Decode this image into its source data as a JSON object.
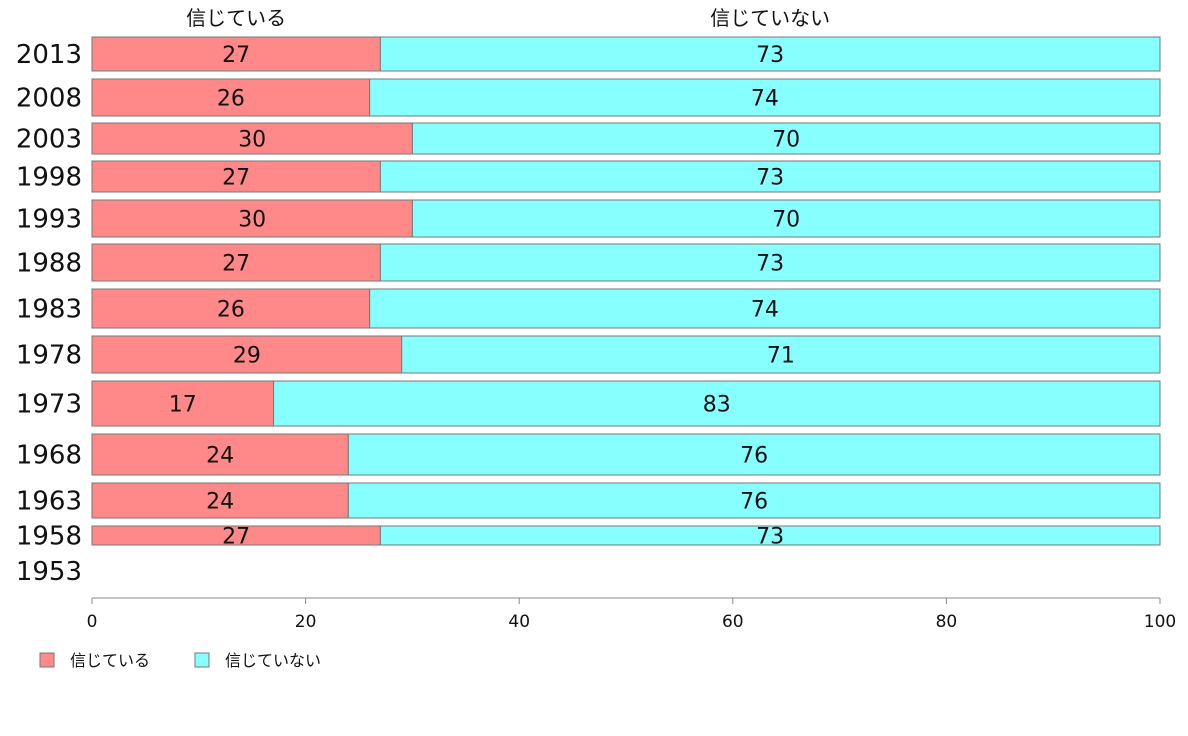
{
  "chart_data": {
    "type": "bar",
    "orientation": "horizontal",
    "stacked": true,
    "categories": [
      "2013",
      "2008",
      "2003",
      "1998",
      "1993",
      "1988",
      "1983",
      "1978",
      "1973",
      "1968",
      "1963",
      "1958",
      "1953"
    ],
    "series": [
      {
        "name": "信じている",
        "color": "#ff8888",
        "values": [
          27,
          26,
          30,
          27,
          30,
          27,
          26,
          29,
          17,
          24,
          24,
          27,
          null
        ]
      },
      {
        "name": "信じていない",
        "color": "#88ffff",
        "values": [
          73,
          74,
          70,
          73,
          70,
          73,
          74,
          71,
          83,
          76,
          76,
          73,
          null
        ]
      }
    ],
    "column_headers": [
      "信じている",
      "信じていない"
    ],
    "xlim": [
      0,
      100
    ],
    "xticks": [
      0,
      20,
      40,
      60,
      80,
      100
    ],
    "legend": {
      "position": "bottom-left",
      "entries": [
        "信じている",
        "信じていない"
      ]
    },
    "grid": false
  }
}
